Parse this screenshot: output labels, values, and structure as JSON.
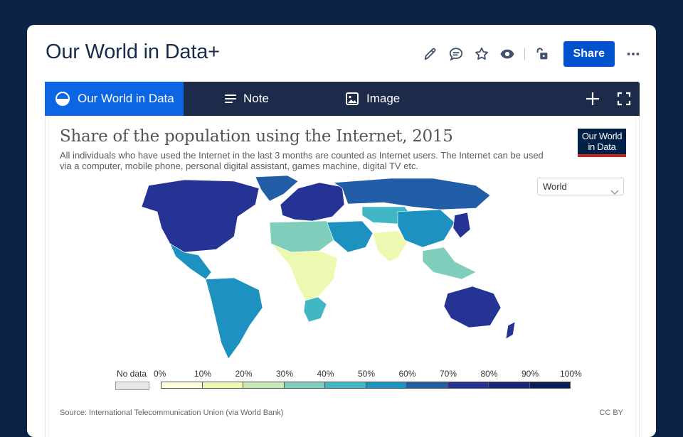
{
  "page": {
    "title": "Our World in Data+"
  },
  "header_actions": {
    "edit_icon": "pencil-icon",
    "comment_icon": "comment-icon",
    "star_icon": "star-icon",
    "watch_icon": "eye-icon",
    "restrict_icon": "unlock-icon",
    "share_label": "Share",
    "more_icon": "more-icon"
  },
  "toolbar": {
    "tabs": [
      {
        "label": "Our World in Data",
        "icon": "owid-icon",
        "active": true
      },
      {
        "label": "Note",
        "icon": "note-lines-icon",
        "active": false
      },
      {
        "label": "Image",
        "icon": "image-icon",
        "active": false
      }
    ],
    "add_icon": "plus-icon",
    "fullscreen_icon": "fullscreen-icon"
  },
  "chart": {
    "title": "Share of the population using the Internet, 2015",
    "subtitle": "All individuals who have used the Internet in the last 3 months are counted as Internet users. The Internet can be used via a computer, mobile phone, personal digital assistant, games machine, digital TV etc.",
    "logo_line1": "Our World",
    "logo_line2": "in Data",
    "region_selected": "World",
    "source": "Source: International Telecommunication Union (via World Bank)",
    "license": "CC BY"
  },
  "chart_data": {
    "type": "choropleth-map",
    "title": "Share of the population using the Internet, 2015",
    "year": 2015,
    "region": "World",
    "legend": {
      "no_data_label": "No data",
      "ticks": [
        "0%",
        "10%",
        "20%",
        "30%",
        "40%",
        "50%",
        "60%",
        "70%",
        "80%",
        "90%",
        "100%"
      ],
      "bin_colors": [
        "#ffffd9",
        "#edf8b1",
        "#c7e9b4",
        "#7fcdbb",
        "#41b6c4",
        "#1d91c0",
        "#225ea8",
        "#253494",
        "#1a237e",
        "#081d58"
      ],
      "no_data_color": "#e6e6e6"
    },
    "regions": [
      {
        "name": "North America",
        "value_pct": 80
      },
      {
        "name": "Greenland",
        "value_pct": 65
      },
      {
        "name": "Mexico & Central America",
        "value_pct": 50
      },
      {
        "name": "South America",
        "value_pct": 55
      },
      {
        "name": "Europe",
        "value_pct": 80
      },
      {
        "name": "Russia",
        "value_pct": 70
      },
      {
        "name": "Central Asia",
        "value_pct": 45
      },
      {
        "name": "Middle East",
        "value_pct": 55
      },
      {
        "name": "North Africa",
        "value_pct": 40
      },
      {
        "name": "Sub-Saharan Africa",
        "value_pct": 12
      },
      {
        "name": "Southern Africa",
        "value_pct": 45
      },
      {
        "name": "South Asia",
        "value_pct": 18
      },
      {
        "name": "China",
        "value_pct": 50
      },
      {
        "name": "Japan & Korea",
        "value_pct": 90
      },
      {
        "name": "Southeast Asia",
        "value_pct": 35
      },
      {
        "name": "Australia",
        "value_pct": 85
      },
      {
        "name": "New Zealand",
        "value_pct": 88
      }
    ]
  },
  "colors": {
    "background": "#0b2445",
    "toolbar": "#1c2b4a",
    "active_tab": "#0c66e4",
    "share_button": "#0052cc",
    "logo_bg": "#002147",
    "logo_accent": "#ce261e"
  }
}
